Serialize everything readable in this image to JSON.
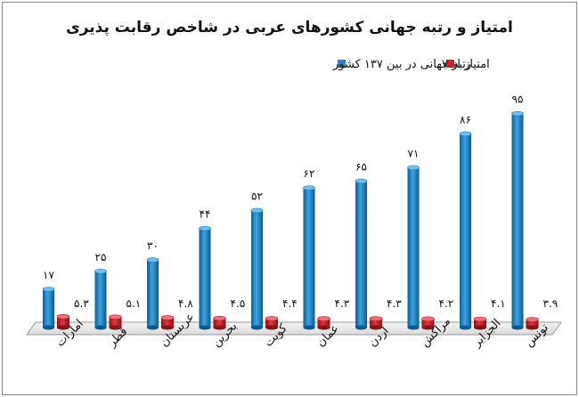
{
  "chart_data": {
    "type": "bar",
    "title": "امتیاز و رتبه جهانی کشورهای عربی  در شاخص رقابت پذیری",
    "categories": [
      "امارات",
      "قطر",
      "عربستان",
      "بحرین",
      "کویت",
      "عمان",
      "اردن",
      "مراکش",
      "الجزایر",
      "تونس"
    ],
    "series": [
      {
        "name": "رتبه جهانی در بین ۱۳۷ کشور",
        "color": "#1f86c9",
        "values": [
          17,
          25,
          30,
          44,
          52,
          62,
          65,
          71,
          86,
          95
        ],
        "labels": [
          "۱۷",
          "۲۵",
          "۳۰",
          "۴۴",
          "۵۲",
          "۶۲",
          "۶۵",
          "۷۱",
          "۸۶",
          "۹۵"
        ]
      },
      {
        "name": "امتیاز از ۷",
        "color": "#d0202b",
        "values": [
          5.3,
          5.1,
          4.8,
          4.5,
          4.4,
          4.3,
          4.3,
          4.2,
          4.1,
          3.9
        ],
        "labels": [
          "۵.۳",
          "۵.۱",
          "۴.۸",
          "۴.۵",
          "۴.۴",
          "۴.۳",
          "۴.۳",
          "۴.۲",
          "۴.۱",
          "۳.۹"
        ]
      }
    ],
    "legend": "top",
    "grid": false,
    "ylim": [
      0,
      100
    ]
  }
}
